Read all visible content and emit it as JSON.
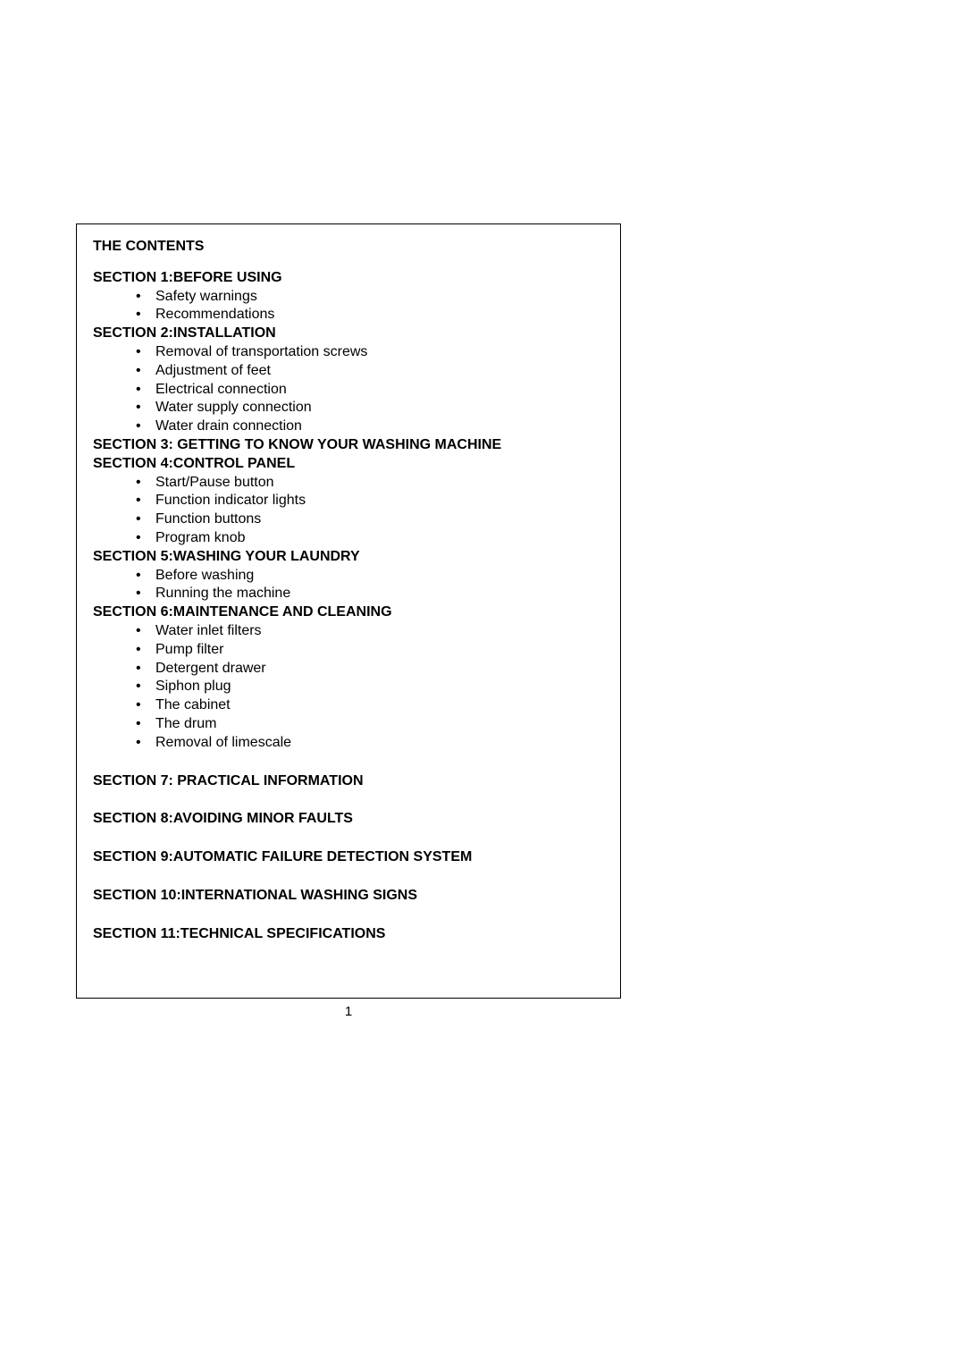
{
  "title": "THE CONTENTS",
  "sections": {
    "s1": {
      "heading": "SECTION 1:BEFORE USING",
      "items": [
        "Safety warnings",
        "Recommendations"
      ]
    },
    "s2": {
      "heading": "SECTION 2:INSTALLATION",
      "items": [
        "Removal of transportation screws",
        "Adjustment of feet",
        "Electrical connection",
        "Water supply connection",
        "Water drain connection"
      ]
    },
    "s3": {
      "heading": "SECTION 3: GETTING TO KNOW YOUR WASHING MACHINE"
    },
    "s4": {
      "heading": "SECTION 4:CONTROL PANEL",
      "items": [
        "Start/Pause button",
        "Function indicator lights",
        "Function buttons",
        "Program knob"
      ]
    },
    "s5": {
      "heading": "SECTION 5:WASHING YOUR LAUNDRY",
      "items": [
        "Before washing",
        "Running the machine"
      ]
    },
    "s6": {
      "heading": "SECTION 6:MAINTENANCE AND CLEANING",
      "items": [
        "Water inlet filters",
        "Pump filter",
        "Detergent drawer",
        "Siphon plug",
        "The cabinet",
        "The drum",
        "Removal of limescale"
      ]
    },
    "s7": {
      "heading": "SECTION 7: PRACTICAL INFORMATION"
    },
    "s8": {
      "heading": "SECTION 8:AVOIDING MINOR FAULTS"
    },
    "s9": {
      "heading": "SECTION 9:AUTOMATIC FAILURE DETECTION SYSTEM"
    },
    "s10": {
      "heading": "SECTION 10:INTERNATIONAL WASHING SIGNS"
    },
    "s11": {
      "heading": "SECTION 11:TECHNICAL SPECIFICATIONS"
    }
  },
  "pageNumber": "1"
}
